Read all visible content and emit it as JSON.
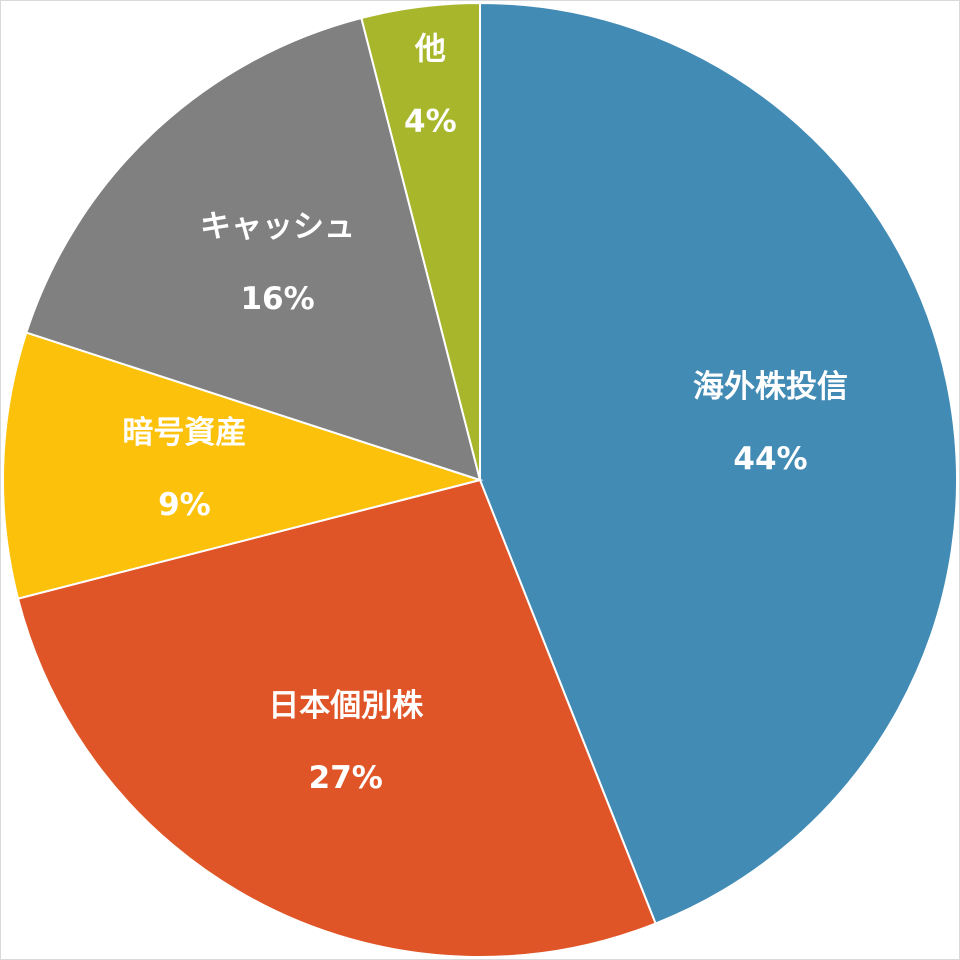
{
  "chart_data": {
    "type": "pie",
    "categories": [
      "海外株投信",
      "日本個別株",
      "暗号資産",
      "キャッシュ",
      "他"
    ],
    "values": [
      44,
      27,
      9,
      16,
      4
    ],
    "value_labels": [
      "44%",
      "27%",
      "9%",
      "16%",
      "4%"
    ],
    "colors": [
      "#428bb5",
      "#e05527",
      "#fcc10a",
      "#808080",
      "#a8b62b"
    ]
  }
}
